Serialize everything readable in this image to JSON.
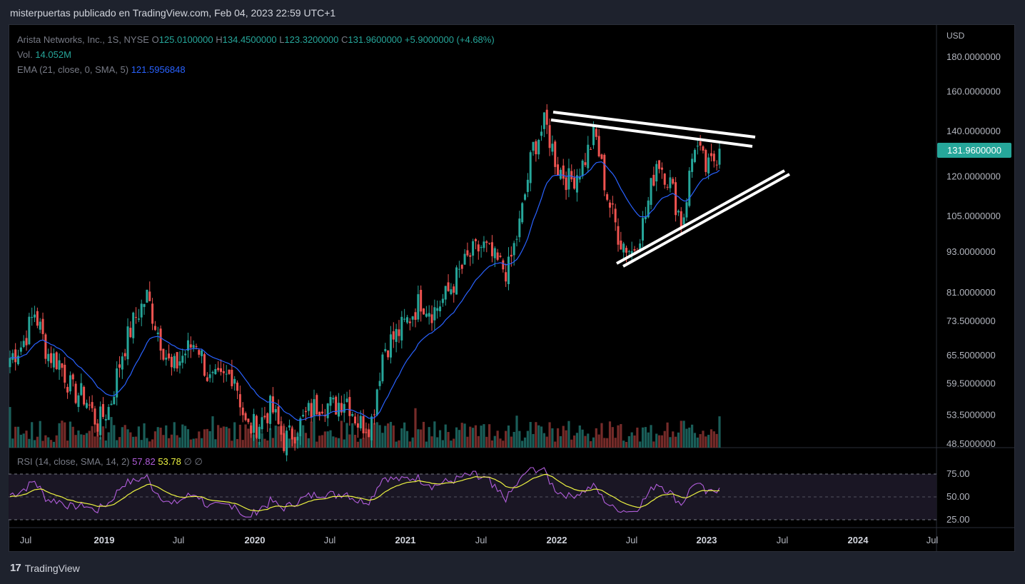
{
  "header": {
    "text": "misterpuertas publicado en TradingView.com, Feb 04, 2023 22:59 UTC+1"
  },
  "legend": {
    "symbol": "Arista Networks, Inc., 1S, NYSE",
    "o_label": "O",
    "o_value": "125.0100000",
    "h_label": "H",
    "h_value": "134.4500000",
    "l_label": "L",
    "l_value": "123.3200000",
    "c_label": "C",
    "c_value": "131.9600000",
    "change": "+5.9000000 (+4.68%)",
    "vol_label": "Vol.",
    "vol_value": "14.052M",
    "ema_label": "EMA (21, close, 0, SMA, 5)",
    "ema_value": "121.5956848"
  },
  "rsi_legend": {
    "label": "RSI (14, close, SMA, 14, 2)",
    "rsi_value": "57.82",
    "ma_value": "53.78",
    "extra1": "∅",
    "extra2": "∅"
  },
  "price_badge": "131.9600000",
  "currency": "USD",
  "footer": {
    "brand": "TradingView",
    "logo": "17"
  },
  "colors": {
    "up": "#26a69a",
    "down": "#ef5350",
    "ema": "#2962ff",
    "rsi": "#b15ddb",
    "rsi_ma": "#ecf241",
    "trendline": "#ffffff"
  },
  "chart_data": {
    "type": "candlestick",
    "scale": "log",
    "price_ticks": [
      "180.0000000",
      "160.0000000",
      "140.0000000",
      "120.0000000",
      "105.0000000",
      "93.0000000",
      "81.0000000",
      "73.5000000",
      "65.5000000",
      "59.5000000",
      "53.5000000",
      "48.5000000"
    ],
    "rsi_ticks": [
      "75.00",
      "50.00",
      "25.00"
    ],
    "x_ticks": [
      "Jul",
      "2019",
      "Jul",
      "2020",
      "Jul",
      "2021",
      "Jul",
      "2022",
      "Jul",
      "2023",
      "Jul",
      "2024",
      "Jul"
    ],
    "close_path": [
      {
        "date": "2018-05",
        "close": 65
      },
      {
        "date": "2018-06",
        "close": 68
      },
      {
        "date": "2018-07",
        "close": 76
      },
      {
        "date": "2018-08",
        "close": 66
      },
      {
        "date": "2018-09",
        "close": 64
      },
      {
        "date": "2018-10",
        "close": 58
      },
      {
        "date": "2018-11",
        "close": 57
      },
      {
        "date": "2018-12",
        "close": 52
      },
      {
        "date": "2019-01",
        "close": 55
      },
      {
        "date": "2019-02",
        "close": 66
      },
      {
        "date": "2019-03",
        "close": 74
      },
      {
        "date": "2019-04",
        "close": 80
      },
      {
        "date": "2019-05",
        "close": 70
      },
      {
        "date": "2019-06",
        "close": 62
      },
      {
        "date": "2019-07",
        "close": 66
      },
      {
        "date": "2019-08",
        "close": 69
      },
      {
        "date": "2019-09",
        "close": 60
      },
      {
        "date": "2019-10",
        "close": 60
      },
      {
        "date": "2019-11",
        "close": 62
      },
      {
        "date": "2019-12",
        "close": 51
      },
      {
        "date": "2020-01",
        "close": 52
      },
      {
        "date": "2020-02",
        "close": 55
      },
      {
        "date": "2020-03",
        "close": 49
      },
      {
        "date": "2020-04",
        "close": 51
      },
      {
        "date": "2020-05",
        "close": 54
      },
      {
        "date": "2020-06",
        "close": 56
      },
      {
        "date": "2020-07",
        "close": 55
      },
      {
        "date": "2020-08",
        "close": 57
      },
      {
        "date": "2020-09",
        "close": 52
      },
      {
        "date": "2020-10",
        "close": 52
      },
      {
        "date": "2020-11",
        "close": 67
      },
      {
        "date": "2020-12",
        "close": 70
      },
      {
        "date": "2021-01",
        "close": 74
      },
      {
        "date": "2021-02",
        "close": 79
      },
      {
        "date": "2021-03",
        "close": 76
      },
      {
        "date": "2021-04",
        "close": 80
      },
      {
        "date": "2021-05",
        "close": 86
      },
      {
        "date": "2021-06",
        "close": 92
      },
      {
        "date": "2021-07",
        "close": 95
      },
      {
        "date": "2021-08",
        "close": 90
      },
      {
        "date": "2021-09",
        "close": 87
      },
      {
        "date": "2021-10",
        "close": 103
      },
      {
        "date": "2021-11",
        "close": 132
      },
      {
        "date": "2021-12",
        "close": 144
      },
      {
        "date": "2022-01",
        "close": 124
      },
      {
        "date": "2022-02",
        "close": 118
      },
      {
        "date": "2022-03",
        "close": 125
      },
      {
        "date": "2022-04",
        "close": 139
      },
      {
        "date": "2022-05",
        "close": 112
      },
      {
        "date": "2022-06",
        "close": 97
      },
      {
        "date": "2022-07",
        "close": 93
      },
      {
        "date": "2022-08",
        "close": 104
      },
      {
        "date": "2022-09",
        "close": 128
      },
      {
        "date": "2022-10",
        "close": 118
      },
      {
        "date": "2022-11",
        "close": 102
      },
      {
        "date": "2022-12",
        "close": 135
      },
      {
        "date": "2023-01",
        "close": 122
      },
      {
        "date": "2023-02",
        "close": 131.96
      }
    ],
    "annotation": "symmetrical triangle trendlines (white, double lines)"
  }
}
